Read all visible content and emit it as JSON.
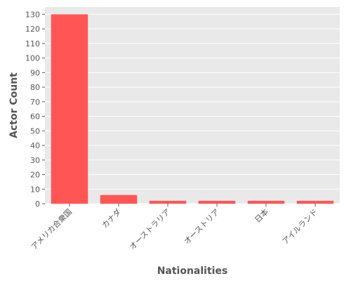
{
  "chart_data": {
    "type": "bar",
    "title": "",
    "xlabel": "Nationalities",
    "ylabel": "Actor Count",
    "categories": [
      "アメリカ合衆国",
      "カナダ",
      "オーストラリア",
      "オーストリア",
      "日本",
      "アイルランド"
    ],
    "values": [
      130,
      6,
      2,
      2,
      2,
      2
    ],
    "ylim": [
      0,
      135
    ],
    "yticks": [
      0,
      10,
      20,
      30,
      40,
      50,
      60,
      70,
      80,
      90,
      100,
      110,
      120,
      130
    ],
    "grid": true,
    "legend": "none",
    "colors": {
      "bar": "#ff5555",
      "panel": "#e9e9e9",
      "grid": "#ffffff",
      "text": "#555555"
    }
  }
}
